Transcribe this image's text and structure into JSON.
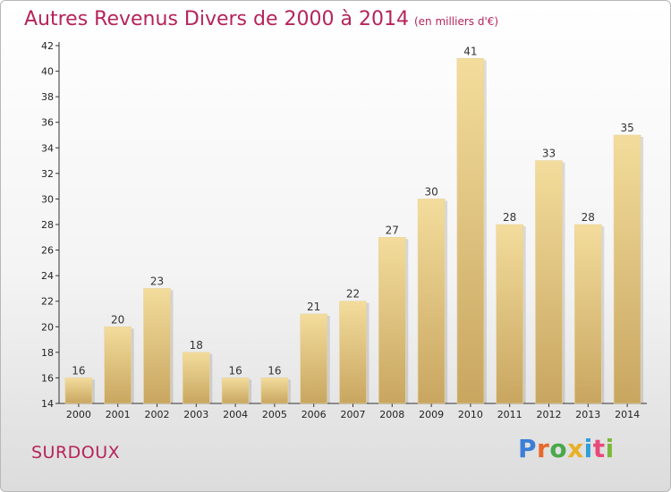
{
  "chart_data": {
    "type": "bar",
    "title": "Autres Revenus Divers de 2000 à 2014",
    "subtitle": "(en milliers d'€)",
    "categories": [
      "2000",
      "2001",
      "2002",
      "2003",
      "2004",
      "2005",
      "2006",
      "2007",
      "2008",
      "2009",
      "2010",
      "2011",
      "2012",
      "2013",
      "2014"
    ],
    "values": [
      16,
      20,
      23,
      18,
      16,
      16,
      21,
      22,
      27,
      30,
      41,
      28,
      33,
      28,
      35
    ],
    "yticks": [
      "14",
      "16",
      "18",
      "20",
      "22",
      "24",
      "26",
      "28",
      "30",
      "32",
      "34",
      "36",
      "38",
      "40",
      "42"
    ],
    "ylim": [
      14,
      42
    ],
    "grid": false,
    "colors": {
      "bar_top": "#f3dc9c",
      "bar_bottom": "#c8a660",
      "title": "#b5245a"
    }
  },
  "place_name": "SURDOUX",
  "brand": {
    "name": "Proxiti",
    "letter_colors": [
      "#3a7fd5",
      "#e8682a",
      "#4aa84a",
      "#e8b024",
      "#2f9fd8",
      "#e84a7a",
      "#7ab83a"
    ]
  }
}
